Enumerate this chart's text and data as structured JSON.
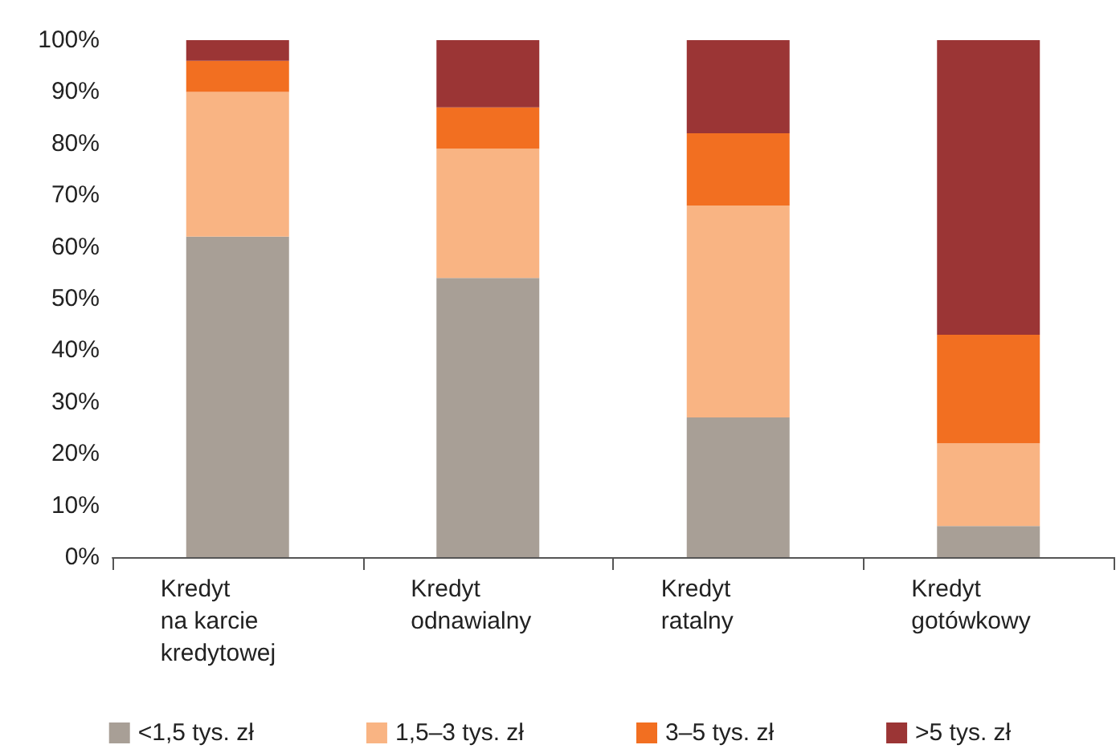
{
  "chart_data": {
    "type": "bar",
    "stacked": true,
    "categories": [
      "Kredyt\nna karcie\nkredytowej",
      "Kredyt\nodnawialny",
      "Kredyt\nratalny",
      "Kredyt\ngotówkowy"
    ],
    "series": [
      {
        "name": "<1,5 tys. zł",
        "color": "#a89f96",
        "values": [
          62,
          54,
          27,
          6
        ]
      },
      {
        "name": "1,5–3 tys. zł",
        "color": "#f9b483",
        "values": [
          28,
          25,
          41,
          16
        ]
      },
      {
        "name": "3–5 tys. zł",
        "color": "#f26f21",
        "values": [
          6,
          8,
          14,
          21
        ]
      },
      {
        "name": ">5 tys. zł",
        "color": "#9b3535",
        "values": [
          4,
          13,
          18,
          57
        ]
      }
    ],
    "ylim": [
      0,
      100
    ],
    "yticks": [
      {
        "value": 0,
        "label": "0%"
      },
      {
        "value": 10,
        "label": "10%"
      },
      {
        "value": 20,
        "label": "20%"
      },
      {
        "value": 30,
        "label": "30%"
      },
      {
        "value": 40,
        "label": "40%"
      },
      {
        "value": 50,
        "label": "50%"
      },
      {
        "value": 60,
        "label": "60%"
      },
      {
        "value": 70,
        "label": "70%"
      },
      {
        "value": 80,
        "label": "80%"
      },
      {
        "value": 90,
        "label": "90%"
      },
      {
        "value": 100,
        "label": "100%"
      }
    ],
    "grid": false,
    "legend": "bottom"
  }
}
